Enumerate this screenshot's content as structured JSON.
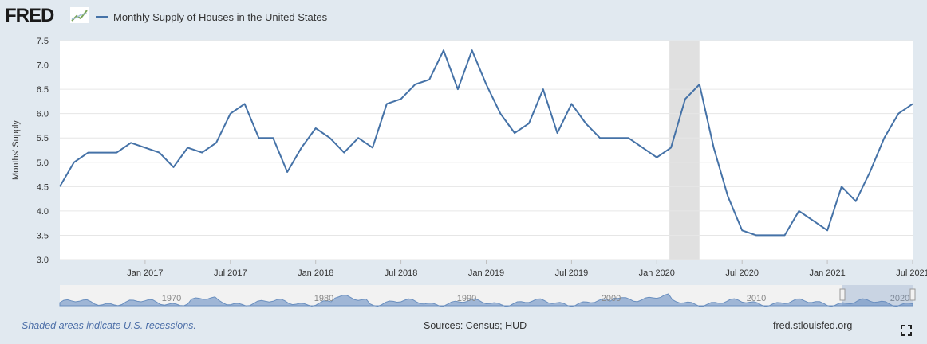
{
  "header": {
    "logo": "FRED",
    "logo_icon": "line-chart-icon",
    "series_name": "Monthly Supply of Houses in the United States"
  },
  "footer": {
    "recession_note": "Shaded areas indicate U.S. recessions.",
    "sources": "Sources: Census; HUD",
    "site": "fred.stlouisfed.org",
    "fullscreen_icon": "fullscreen-icon"
  },
  "navigator": {
    "labels": [
      "1970",
      "1980",
      "1990",
      "2000",
      "2010",
      "2020"
    ]
  },
  "colors": {
    "series": "#4572a7",
    "recession": "#e0e0e0",
    "background": "#e1e9f0",
    "plot_background": "#ffffff"
  },
  "chart_data": {
    "type": "line",
    "title": "",
    "xlabel": "",
    "ylabel": "Months' Supply",
    "ylim": [
      3.0,
      7.5
    ],
    "yticks": [
      "3.0",
      "3.5",
      "4.0",
      "4.5",
      "5.0",
      "5.5",
      "6.0",
      "6.5",
      "7.0",
      "7.5"
    ],
    "xlim": [
      "2016-07",
      "2021-07"
    ],
    "xticks": [
      {
        "date": "2017-01",
        "label": "Jan 2017"
      },
      {
        "date": "2017-07",
        "label": "Jul 2017"
      },
      {
        "date": "2018-01",
        "label": "Jan 2018"
      },
      {
        "date": "2018-07",
        "label": "Jul 2018"
      },
      {
        "date": "2019-01",
        "label": "Jan 2019"
      },
      {
        "date": "2019-07",
        "label": "Jul 2019"
      },
      {
        "date": "2020-01",
        "label": "Jan 2020"
      },
      {
        "date": "2020-07",
        "label": "Jul 2020"
      },
      {
        "date": "2021-01",
        "label": "Jan 2021"
      },
      {
        "date": "2021-07",
        "label": "Jul 2021"
      }
    ],
    "recessions": [
      {
        "start": "2020-02",
        "end": "2020-04"
      }
    ],
    "grid": true,
    "legend": "top-left",
    "series": [
      {
        "name": "Monthly Supply of Houses in the United States",
        "x": [
          "2016-07",
          "2016-08",
          "2016-09",
          "2016-10",
          "2016-11",
          "2016-12",
          "2017-01",
          "2017-02",
          "2017-03",
          "2017-04",
          "2017-05",
          "2017-06",
          "2017-07",
          "2017-08",
          "2017-09",
          "2017-10",
          "2017-11",
          "2017-12",
          "2018-01",
          "2018-02",
          "2018-03",
          "2018-04",
          "2018-05",
          "2018-06",
          "2018-07",
          "2018-08",
          "2018-09",
          "2018-10",
          "2018-11",
          "2018-12",
          "2019-01",
          "2019-02",
          "2019-03",
          "2019-04",
          "2019-05",
          "2019-06",
          "2019-07",
          "2019-08",
          "2019-09",
          "2019-10",
          "2019-11",
          "2019-12",
          "2020-01",
          "2020-02",
          "2020-03",
          "2020-04",
          "2020-05",
          "2020-06",
          "2020-07",
          "2020-08",
          "2020-09",
          "2020-10",
          "2020-11",
          "2020-12",
          "2021-01",
          "2021-02",
          "2021-03",
          "2021-04",
          "2021-05",
          "2021-06",
          "2021-07"
        ],
        "values": [
          4.5,
          5.0,
          5.2,
          5.2,
          5.2,
          5.4,
          5.3,
          5.2,
          4.9,
          5.3,
          5.2,
          5.4,
          6.0,
          6.2,
          5.5,
          5.5,
          4.8,
          5.3,
          5.7,
          5.5,
          5.2,
          5.5,
          5.3,
          6.2,
          6.3,
          6.6,
          6.7,
          7.3,
          6.5,
          7.3,
          6.6,
          6.0,
          5.6,
          5.8,
          6.5,
          5.6,
          6.2,
          5.8,
          5.5,
          5.5,
          5.5,
          5.3,
          5.1,
          5.3,
          6.3,
          6.6,
          5.3,
          4.3,
          3.6,
          3.5,
          3.5,
          3.5,
          4.0,
          3.8,
          3.6,
          4.5,
          4.2,
          4.8,
          5.5,
          6.0,
          6.2
        ]
      }
    ]
  }
}
